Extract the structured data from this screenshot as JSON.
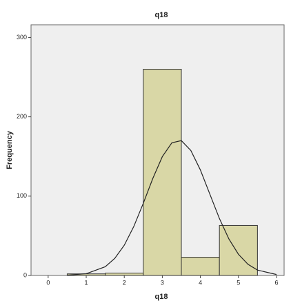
{
  "chart_data": {
    "type": "histogram",
    "title": "q18",
    "x_label": "q18",
    "y_label": "Frequency",
    "bins": [
      0.5,
      1.5,
      2.5,
      3.5,
      4.5,
      5.5
    ],
    "values": [
      2,
      3,
      260,
      23,
      63
    ],
    "color": "#d9d7a6",
    "xlim": [
      -0.45,
      6.2
    ],
    "xticks": [
      0,
      1,
      2,
      3,
      4,
      5,
      6
    ],
    "ylim": [
      0,
      316
    ],
    "yticks": [
      0,
      100,
      200,
      300
    ],
    "curve": {
      "x": [
        0.5,
        1,
        1.5,
        1.75,
        2,
        2.25,
        2.5,
        2.75,
        3,
        3.25,
        3.5,
        3.75,
        4,
        4.25,
        4.5,
        4.75,
        5,
        5.25,
        5.5,
        6
      ],
      "values": [
        0.3,
        2.2,
        11,
        21.5,
        38.1,
        61.7,
        91,
        122.3,
        149.8,
        167.2,
        170,
        157.5,
        133,
        102.4,
        71.8,
        45.9,
        26.7,
        14.1,
        6.8,
        1.2
      ],
      "color": "#222222"
    }
  }
}
